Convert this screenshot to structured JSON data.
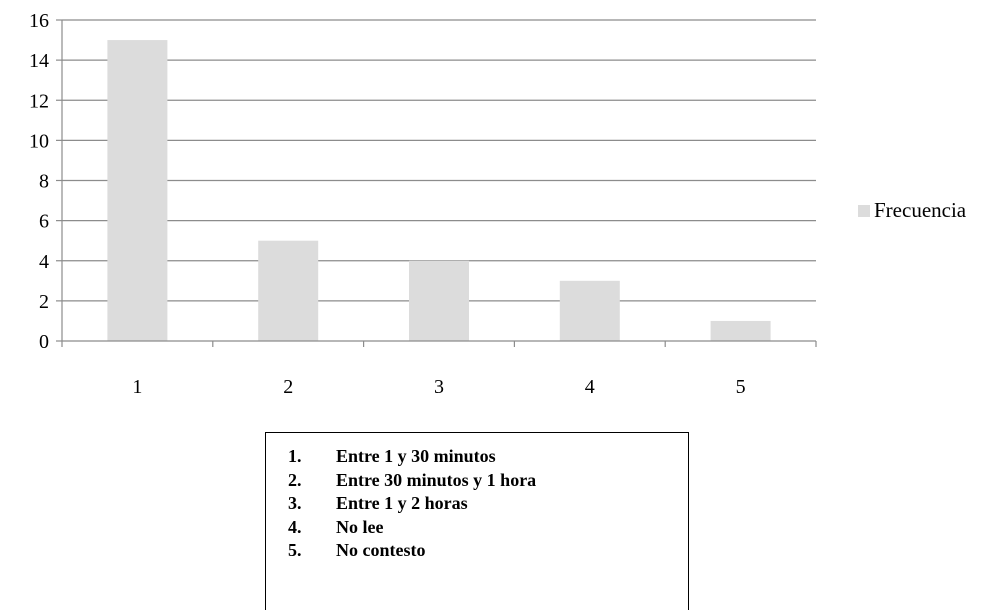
{
  "chart_data": {
    "type": "bar",
    "categories": [
      "1",
      "2",
      "3",
      "4",
      "5"
    ],
    "series": [
      {
        "name": "Frecuencia",
        "values": [
          15,
          5,
          4,
          3,
          1
        ]
      }
    ],
    "ylim": [
      0,
      16
    ],
    "yticks": [
      "0",
      "2",
      "4",
      "6",
      "8",
      "10",
      "12",
      "14",
      "16"
    ],
    "grid": true,
    "legend_position": "right",
    "colors": {
      "bar": "#dcdcdc",
      "grid": "#8c8c8c",
      "axis": "#8c8c8c"
    }
  },
  "legend": {
    "label": "Frecuencia"
  },
  "key": {
    "items": [
      {
        "num": "1.",
        "label": "Entre 1 y 30 minutos"
      },
      {
        "num": "2.",
        "label": "Entre 30 minutos y 1 hora"
      },
      {
        "num": "3.",
        "label": "Entre 1 y 2 horas"
      },
      {
        "num": "4.",
        "label": "No lee"
      },
      {
        "num": "5.",
        "label": "No contesto"
      }
    ]
  }
}
